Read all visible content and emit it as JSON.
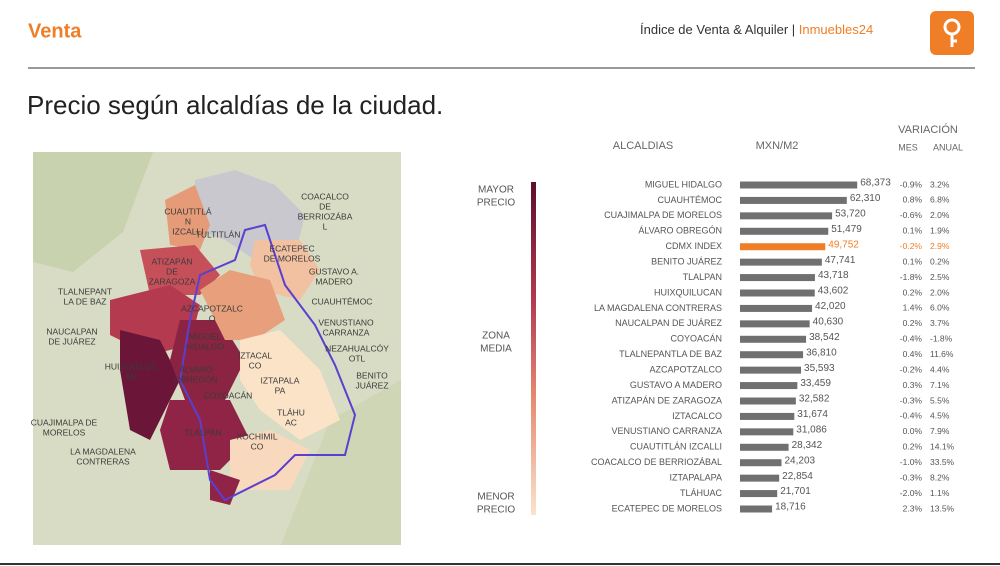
{
  "header": {
    "section": "Venta",
    "index_title": "Índice de Venta & Alquiler | ",
    "brand": "Inmuebles24"
  },
  "title": "Precio según alcaldías de la ciudad.",
  "legend": {
    "top": [
      "MAYOR",
      "PRECIO"
    ],
    "middle": [
      "ZONA",
      "MEDIA"
    ],
    "bottom": [
      "MENOR",
      "PRECIO"
    ]
  },
  "map_labels": [
    [
      "COACALCO",
      "DE",
      "BERRIOZÁBA",
      "L"
    ],
    [
      "CUAUTITLÁ",
      "N",
      "IZCALLI"
    ],
    [
      "TULTITLÁN"
    ],
    [
      "ECATEPEC",
      "DE MORELOS"
    ],
    [
      "ATIZAPÁN",
      "DE",
      "ZARAGOZA"
    ],
    [
      "GUSTAVO A.",
      "MADERO"
    ],
    [
      "TLALNEPANT",
      "LA DE BAZ"
    ],
    [
      "CUAUHTÉMOC"
    ],
    [
      "AZCAPOTZALC",
      "O"
    ],
    [
      "VENUSTIANO",
      "CARRANZA"
    ],
    [
      "NAUCALPAN",
      "DE JUÁREZ"
    ],
    [
      "MIGUEL",
      "HIDALGO"
    ],
    [
      "NEZAHUALCÓY",
      "OTL"
    ],
    [
      "IZTACAL",
      "CO"
    ],
    [
      "HUIXQUILUC",
      "AN"
    ],
    [
      "ÁLVARO",
      "OBREGÓN"
    ],
    [
      "BENITO",
      "JUÁREZ"
    ],
    [
      "IZTAPALA",
      "PA"
    ],
    [
      "COYOACÁN"
    ],
    [
      "CUAJIMALPA DE",
      "MORELOS"
    ],
    [
      "TLÁHU",
      "AC"
    ],
    [
      "TLALPAN"
    ],
    [
      "LA MAGDALENA",
      "CONTRERAS"
    ],
    [
      "XOCHIMIL",
      "CO"
    ]
  ],
  "chart_data": {
    "type": "bar",
    "orientation": "horizontal",
    "headers": {
      "name": "ALCALDIAS",
      "value": "MXN/M2",
      "variation": "VARIACIÓN",
      "mes": "MES",
      "anual": "ANUAL"
    },
    "categories": [
      "MIGUEL HIDALGO",
      "CUAUHTÉMOC",
      "CUAJIMALPA DE MORELOS",
      "ÁLVARO OBREGÓN",
      "CDMX INDEX",
      "BENITO JUÁREZ",
      "TLALPAN",
      "HUIXQUILUCAN",
      "LA MAGDALENA CONTRERAS",
      "NAUCALPAN DE JUÁREZ",
      "COYOACÁN",
      "TLALNEPANTLA DE BAZ",
      "AZCAPOTZALCO",
      "GUSTAVO A MADERO",
      "ATIZAPÁN DE ZARAGOZA",
      "IZTACALCO",
      "VENUSTIANO CARRANZA",
      "CUAUTITLÁN IZCALLI",
      "COACALCO DE BERRIOZÁBAL",
      "IZTAPALAPA",
      "TLÁHUAC",
      "ECATEPEC DE MORELOS"
    ],
    "values": [
      68373,
      62310,
      53720,
      51479,
      49752,
      47741,
      43718,
      43602,
      42020,
      40630,
      38542,
      36810,
      35593,
      33459,
      32582,
      31674,
      31086,
      28342,
      24203,
      22854,
      21701,
      18716
    ],
    "value_labels": [
      "68,373",
      "62,310",
      "53,720",
      "51,479",
      "49,752",
      "47,741",
      "43,718",
      "43,602",
      "42,020",
      "40,630",
      "38,542",
      "36,810",
      "35,593",
      "33,459",
      "32,582",
      "31,674",
      "31,086",
      "28,342",
      "24,203",
      "22,854",
      "21,701",
      "18,716"
    ],
    "mes": [
      "-0.9%",
      "0.8%",
      "-0.6%",
      "0.1%",
      "-0.2%",
      "0.1%",
      "-1.8%",
      "0.2%",
      "1.4%",
      "0.2%",
      "-0.4%",
      "0.4%",
      "-0.2%",
      "0.3%",
      "-0.3%",
      "-0.4%",
      "0.0%",
      "0.2%",
      "-1.0%",
      "-0.3%",
      "-2.0%",
      "2.3%"
    ],
    "anual": [
      "3.2%",
      "6.8%",
      "2.0%",
      "1.9%",
      "2.9%",
      "0.2%",
      "2.5%",
      "2.0%",
      "6.0%",
      "3.7%",
      "-1.8%",
      "11.6%",
      "4.4%",
      "7.1%",
      "5.5%",
      "4.5%",
      "7.9%",
      "14.1%",
      "33.5%",
      "8.2%",
      "1.1%",
      "13.5%"
    ],
    "colors": [
      "#707070",
      "#707070",
      "#707070",
      "#707070",
      "#f07e26",
      "#707070",
      "#707070",
      "#707070",
      "#707070",
      "#707070",
      "#707070",
      "#707070",
      "#707070",
      "#707070",
      "#707070",
      "#707070",
      "#707070",
      "#707070",
      "#707070",
      "#707070",
      "#707070",
      "#707070"
    ],
    "xlim": [
      0,
      70000
    ]
  }
}
